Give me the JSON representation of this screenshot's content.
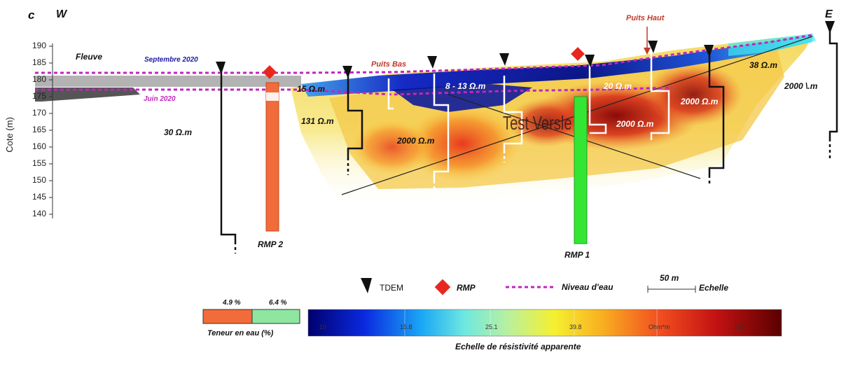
{
  "panel": "c",
  "directions": {
    "west": "W",
    "east": "E"
  },
  "y_axis": {
    "label": "Cote  (m)",
    "ticks": [
      "190",
      "185",
      "180",
      "175",
      "170",
      "165",
      "160",
      "155",
      "150",
      "145",
      "140"
    ]
  },
  "labels": {
    "fleuve": "Fleuve",
    "septembre": "Septembre 2020",
    "juin": "Juin 2020",
    "puits_bas": "Puits Bas",
    "puits_haut": "Puits Haut",
    "rmp2": "RMP 2",
    "rmp1": "RMP 1",
    "watermark": "Test Versle"
  },
  "resistivity": {
    "r30": "30 Ω.m",
    "r131": "131 Ω.m",
    "r15": "15 Ω.m",
    "r8_13": "8 - 13 Ω.m",
    "r2000_a": "2000 Ω.m",
    "r20": "20 Ω.m",
    "r2000_b": "2000 Ω.m",
    "r2000_c": "2000 Ω.m",
    "r38": "38 Ω.m",
    "r2000_d": "2000 \\.m"
  },
  "legend": {
    "tdem": "TDEM",
    "rmp": "RMP",
    "niveau": "Niveau d'eau",
    "scale_value": "50 m",
    "scale_label": "Echelle"
  },
  "water_content": {
    "title": "Teneur en eau (%)",
    "left_value": "4.9 %",
    "right_value": "6.4 %",
    "left_color": "#f26b3a",
    "right_color": "#8ee6a0"
  },
  "colorbar": {
    "title": "Echelle de résistivité apparente",
    "ticks": [
      "10",
      "15.8",
      "25.1",
      "39.8",
      "Ohm*m",
      "100"
    ]
  },
  "colors": {
    "water_level": "#c026c0",
    "rmp_marker": "#e8281e",
    "rmp1_bar": "#33e633",
    "rmp2_bar": "#f26b3a"
  }
}
